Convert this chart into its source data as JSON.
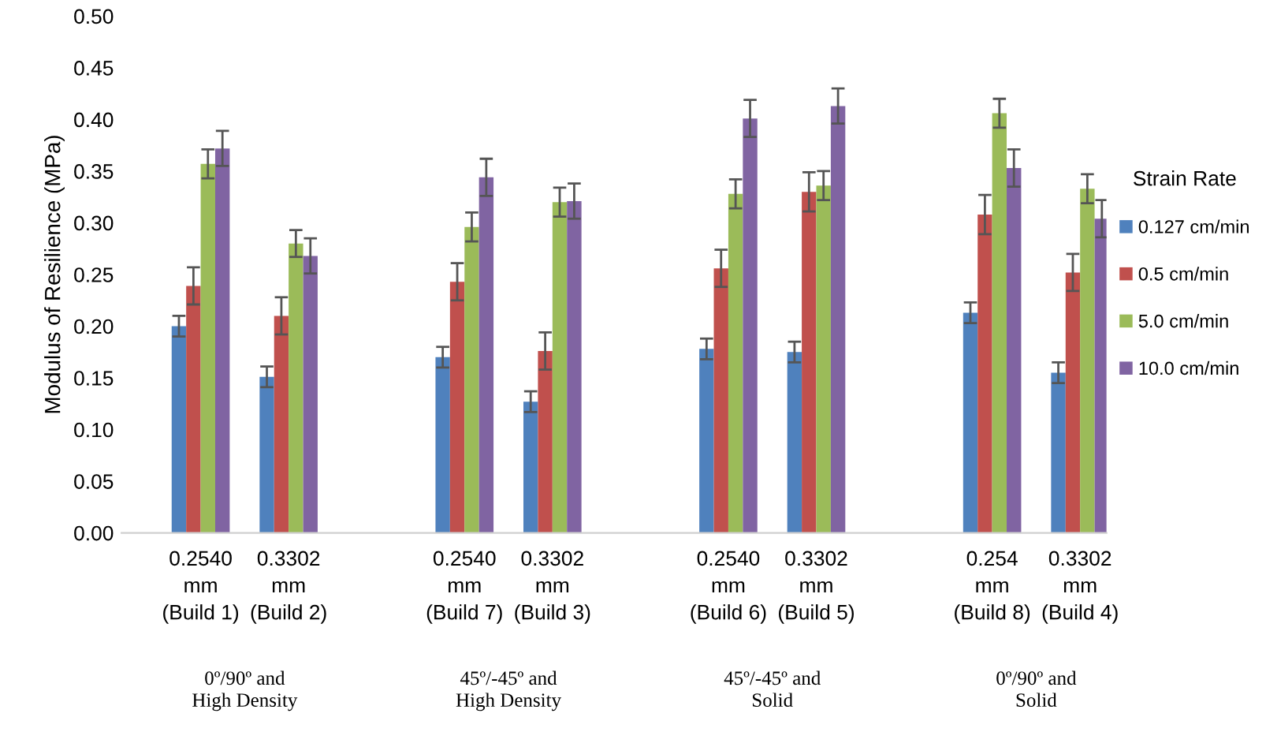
{
  "chart_data": {
    "type": "bar",
    "ylabel": "Modulus of Resilience (MPa)",
    "legend_title": "Strain Rate",
    "categories": [
      "0.2540\nmm\n(Build 1)",
      "0.3302\nmm\n(Build 2)",
      null,
      "0.2540\nmm\n(Build 7)",
      "0.3302\nmm\n(Build 3)",
      null,
      "0.2540\nmm\n(Build 6)",
      "0.3302\nmm\n(Build 5)",
      null,
      "0.254\nmm\n(Build 8)",
      "0.3302\nmm\n(Build 4)"
    ],
    "series": [
      {
        "name": "0.127 cm/min",
        "color": "#4f81bd",
        "values": [
          0.2,
          0.151,
          null,
          0.17,
          0.127,
          null,
          0.178,
          0.175,
          null,
          0.213,
          0.155
        ],
        "errors": [
          0.01,
          0.01,
          null,
          0.01,
          0.01,
          null,
          0.01,
          0.01,
          null,
          0.01,
          0.01
        ]
      },
      {
        "name": "0.5 cm/min",
        "color": "#c0504d",
        "values": [
          0.239,
          0.21,
          null,
          0.243,
          0.176,
          null,
          0.256,
          0.33,
          null,
          0.308,
          0.252
        ],
        "errors": [
          0.018,
          0.018,
          null,
          0.018,
          0.018,
          null,
          0.018,
          0.019,
          null,
          0.019,
          0.018
        ]
      },
      {
        "name": "5.0 cm/min",
        "color": "#9bbb59",
        "values": [
          0.357,
          0.28,
          null,
          0.296,
          0.32,
          null,
          0.328,
          0.336,
          null,
          0.406,
          0.333
        ],
        "errors": [
          0.014,
          0.013,
          null,
          0.014,
          0.014,
          null,
          0.014,
          0.014,
          null,
          0.014,
          0.014
        ]
      },
      {
        "name": "10.0 cm/min",
        "color": "#8064a2",
        "values": [
          0.372,
          0.268,
          null,
          0.344,
          0.321,
          null,
          0.401,
          0.413,
          null,
          0.353,
          0.304
        ],
        "errors": [
          0.017,
          0.017,
          null,
          0.018,
          0.017,
          null,
          0.018,
          0.017,
          null,
          0.018,
          0.018
        ]
      }
    ],
    "annotations": [
      "0º/90º and\nHigh Density",
      "45º/-45º and\nHigh Density",
      "45º/-45º and\nSolid",
      "0º/90º and\nSolid"
    ],
    "ylim": [
      0,
      0.5
    ],
    "yticks": [
      {
        "value": 0,
        "label": "0.00"
      },
      {
        "value": 0.05,
        "label": "0.05"
      },
      {
        "value": 0.1,
        "label": "0.10"
      },
      {
        "value": 0.15,
        "label": "0.15"
      },
      {
        "value": 0.2,
        "label": "0.20"
      },
      {
        "value": 0.25,
        "label": "0.25"
      },
      {
        "value": 0.3,
        "label": "0.30"
      },
      {
        "value": 0.35,
        "label": "0.35"
      },
      {
        "value": 0.4,
        "label": "0.40"
      },
      {
        "value": 0.45,
        "label": "0.45"
      },
      {
        "value": 0.5,
        "label": "0.50"
      }
    ],
    "grid": false,
    "legend": "right"
  }
}
